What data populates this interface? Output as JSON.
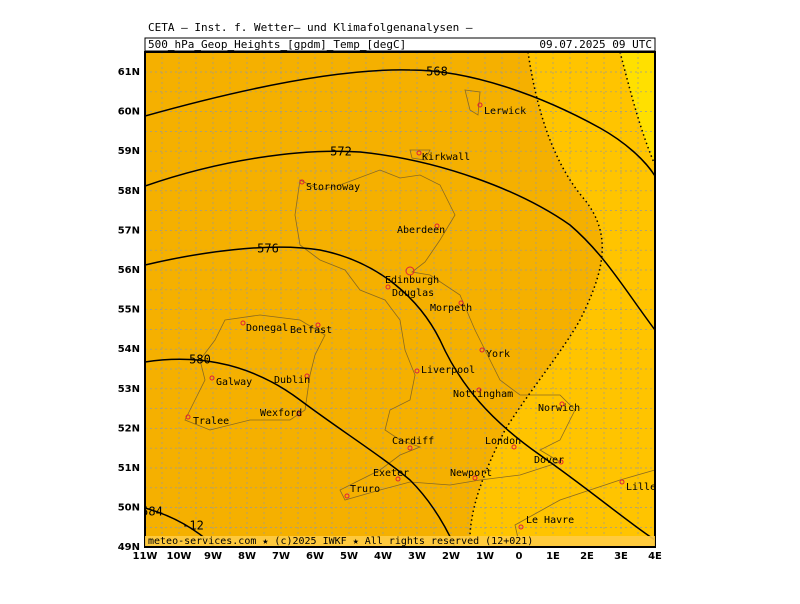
{
  "header": {
    "institute": "CETA — Inst. f. Wetter— und Klimafolgenanalysen —",
    "field": "500_hPa_Geop_Heights_[gpdm]_Temp_[degC]",
    "time": "09.07.2025 09 UTC"
  },
  "axes": {
    "lon_labels": [
      "11W",
      "10W",
      "9W",
      "8W",
      "7W",
      "6W",
      "5W",
      "4W",
      "3W",
      "2W",
      "1W",
      "0",
      "1E",
      "2E",
      "3E",
      "4E"
    ],
    "lat_labels": [
      "61N",
      "60N",
      "59N",
      "58N",
      "57N",
      "56N",
      "55N",
      "54N",
      "53N",
      "52N",
      "51N",
      "50N",
      "49N"
    ]
  },
  "contour_labels": [
    "568",
    "572",
    "576",
    "580",
    "584",
    "-12"
  ],
  "cities": [
    "Lerwick",
    "Kirkwall",
    "Stornoway",
    "Aberdeen",
    "Edinburgh",
    "Douglas",
    "Morpeth",
    "Donegal",
    "Belfast",
    "York",
    "Galway",
    "Dublin",
    "Liverpool",
    "Nottingham",
    "Norwich",
    "Tralee",
    "Wexford",
    "Cardiff",
    "London",
    "Dover",
    "Lille",
    "Exeter",
    "Newport",
    "Truro",
    "Le Havre"
  ],
  "footer": "meteo-services.com ★ (c)2025 IWKF ★ All rights reserved (12+021)"
}
